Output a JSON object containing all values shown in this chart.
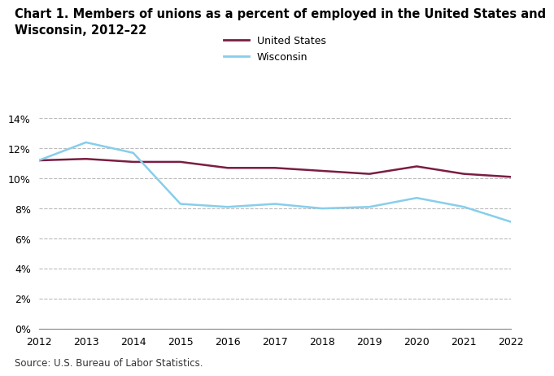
{
  "title": "Chart 1. Members of unions as a percent of employed in the United States and\nWisconsin, 2012–22",
  "years": [
    2012,
    2013,
    2014,
    2015,
    2016,
    2017,
    2018,
    2019,
    2020,
    2021,
    2022
  ],
  "us_values": [
    11.2,
    11.3,
    11.1,
    11.1,
    10.7,
    10.7,
    10.5,
    10.3,
    10.8,
    10.3,
    10.1
  ],
  "wi_values": [
    11.2,
    12.4,
    11.7,
    8.3,
    8.1,
    8.3,
    8.0,
    8.1,
    8.7,
    8.1,
    7.1
  ],
  "us_color": "#7B1D42",
  "wi_color": "#87CEEB",
  "us_label": "United States",
  "wi_label": "Wisconsin",
  "ylim": [
    0,
    14
  ],
  "yticks": [
    0,
    2,
    4,
    6,
    8,
    10,
    12,
    14
  ],
  "source": "Source: U.S. Bureau of Labor Statistics.",
  "bg_color": "#ffffff",
  "grid_color": "#bbbbbb",
  "line_width": 1.8
}
